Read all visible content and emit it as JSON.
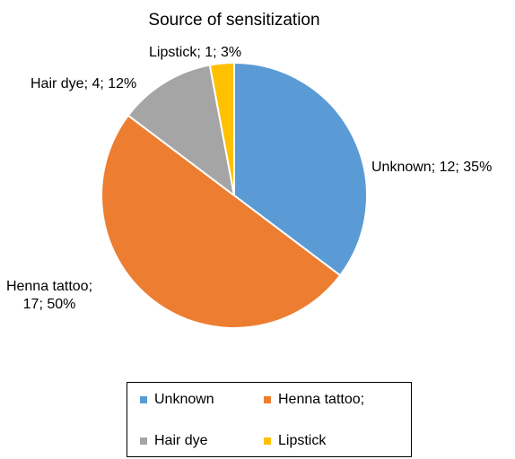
{
  "chart_data": {
    "type": "pie",
    "title": "Source of sensitization",
    "slices": [
      {
        "name": "Unknown",
        "legend_label": "Unknown",
        "value": 12,
        "percent": 35,
        "label_lines": [
          "Unknown; 12; 35%"
        ],
        "color": "#5b9bd5"
      },
      {
        "name": "Henna tattoo;",
        "legend_label": "Henna tattoo;",
        "value": 17,
        "percent": 50,
        "label_lines": [
          "Henna tattoo;",
          "17; 50%"
        ],
        "color": "#ed7d31"
      },
      {
        "name": "Hair dye",
        "legend_label": "Hair dye",
        "value": 4,
        "percent": 12,
        "label_lines": [
          "Hair dye; 4; 12%"
        ],
        "color": "#a5a5a5"
      },
      {
        "name": "Lipstick",
        "legend_label": "Lipstick",
        "value": 1,
        "percent": 3,
        "label_lines": [
          "Lipstick; 1; 3%"
        ],
        "color": "#ffc000"
      }
    ],
    "legend_position": "bottom"
  }
}
